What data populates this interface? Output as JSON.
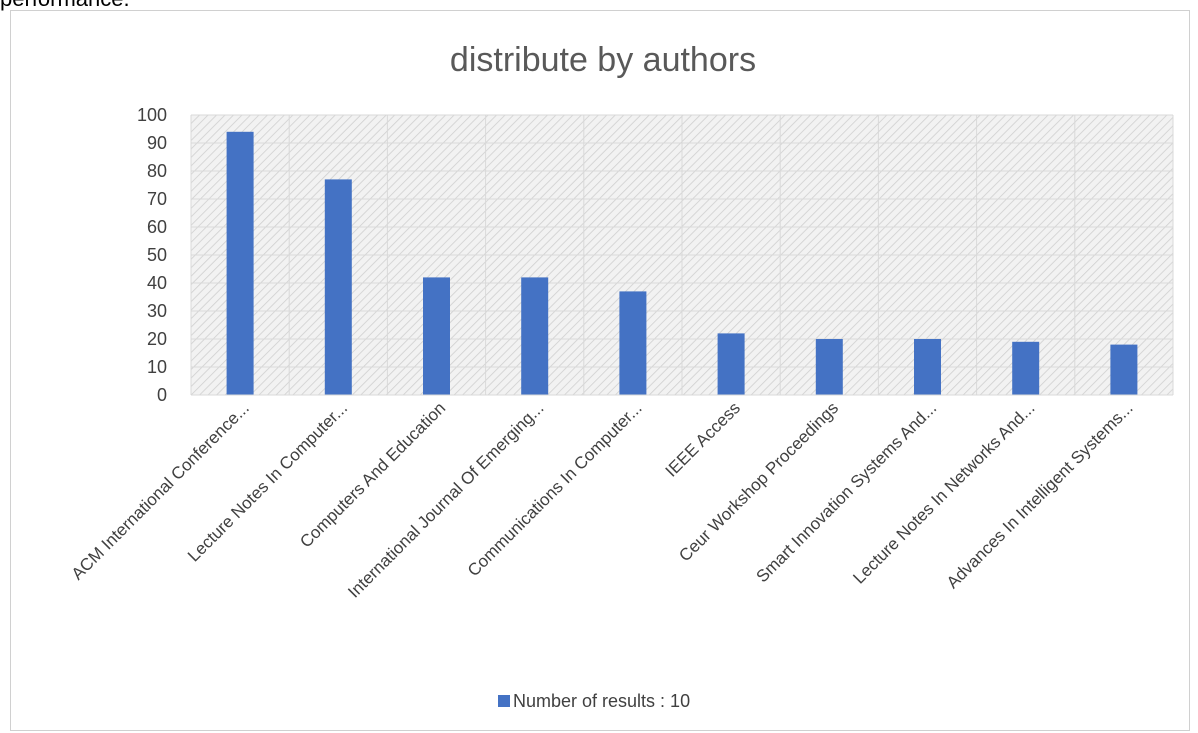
{
  "page": {
    "top_text": "performance."
  },
  "chart_data": {
    "type": "bar",
    "title": "distribute by authors",
    "xlabel": "",
    "ylabel": "",
    "ylim": [
      0,
      100
    ],
    "yticks": [
      0,
      10,
      20,
      30,
      40,
      50,
      60,
      70,
      80,
      90,
      100
    ],
    "grid": true,
    "legend_position": "bottom",
    "categories": [
      "ACM International Conference...",
      "Lecture Notes In Computer...",
      "Computers And Education",
      "International Journal Of Emerging...",
      "Communications In Computer...",
      "IEEE Access",
      "Ceur Workshop Proceedings",
      "Smart Innovation Systems And...",
      "Lecture Notes In Networks And...",
      "Advances In Intelligent Systems..."
    ],
    "series": [
      {
        "name": "Number of results : 10",
        "values": [
          94,
          77,
          42,
          42,
          37,
          22,
          20,
          20,
          19,
          18
        ],
        "color": "#4472C4"
      }
    ]
  }
}
